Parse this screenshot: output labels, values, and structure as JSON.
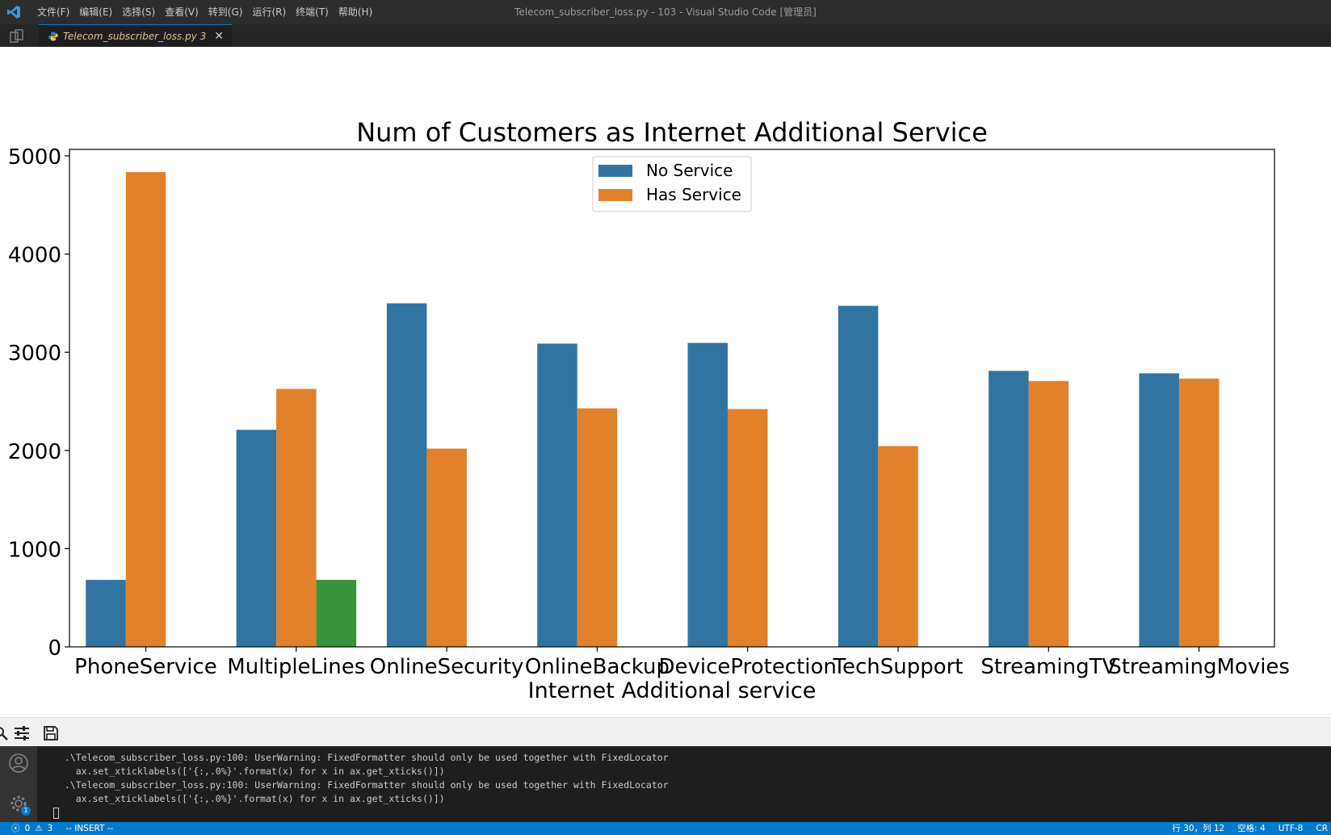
{
  "titlebar": {
    "menu": [
      "文件(F)",
      "编辑(E)",
      "选择(S)",
      "查看(V)",
      "转到(G)",
      "运行(R)",
      "终端(T)",
      "帮助(H)"
    ],
    "window_title": "Telecom_subscriber_loss.py - 103 - Visual Studio Code [管理员]"
  },
  "tab": {
    "label": "Telecom_subscriber_loss.py 3",
    "close_glyph": "✕"
  },
  "chart_data": {
    "type": "bar",
    "title": "Num of Customers as Internet Additional Service",
    "xlabel": "Internet Additional service",
    "ylabel": "",
    "ylim": [
      0,
      5000
    ],
    "yticks": [
      0,
      1000,
      2000,
      3000,
      4000,
      5000
    ],
    "categories": [
      "PhoneService",
      "MultipleLines",
      "OnlineSecurity",
      "OnlineBackup",
      "DeviceProtection",
      "TechSupport",
      "StreamingTV",
      "StreamingMovies"
    ],
    "series": [
      {
        "name": "No Service",
        "color": "#3274a1",
        "values": [
          682,
          2210,
          3498,
          3088,
          3095,
          3473,
          2810,
          2785
        ]
      },
      {
        "name": "Has Service",
        "color": "#e1812c",
        "values": [
          4835,
          2627,
          2019,
          2429,
          2422,
          2044,
          2707,
          2732
        ]
      },
      {
        "name": "",
        "color": "#3a923a",
        "values": [
          null,
          682,
          null,
          null,
          null,
          null,
          null,
          null
        ]
      }
    ],
    "legend": {
      "position": "upper-center",
      "entries": [
        "No Service",
        "Has Service"
      ]
    },
    "grid": false
  },
  "terminal": {
    "lines": [
      "  .\\Telecom_subscriber_loss.py:100: UserWarning: FixedFormatter should only be used together with FixedLocator",
      "    ax.set_xticklabels(['{:,.0%}'.format(x) for x in ax.get_xticks()])",
      "  .\\Telecom_subscriber_loss.py:100: UserWarning: FixedFormatter should only be used together with FixedLocator",
      "    ax.set_xticklabels(['{:,.0%}'.format(x) for x in ax.get_xticks()])"
    ]
  },
  "statusbar": {
    "errors": "0",
    "warnings": "3",
    "mode": "-- INSERT --",
    "position": "行 30，列 12",
    "spaces": "空格: 4",
    "encoding": "UTF-8",
    "eol": "CR"
  },
  "settings_badge": "1"
}
